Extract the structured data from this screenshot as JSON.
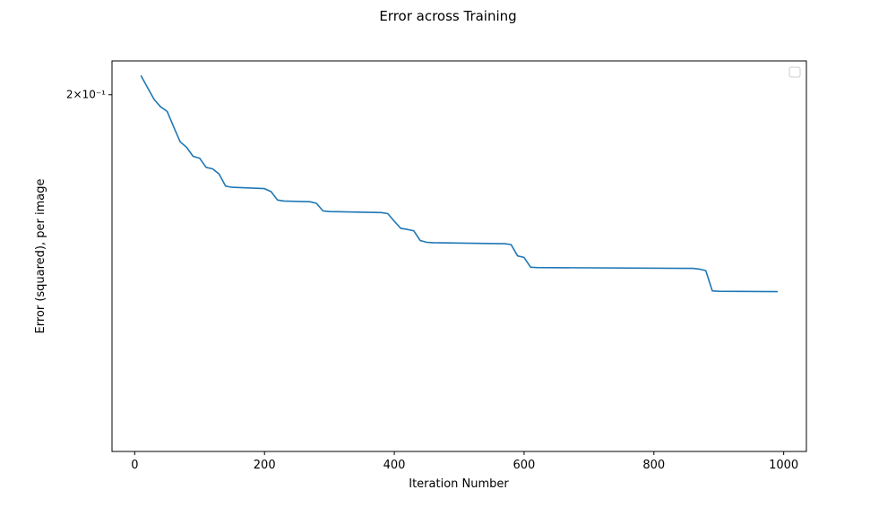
{
  "chart_data": {
    "type": "line",
    "title": "Error across Training",
    "xlabel": "Iteration Number",
    "ylabel": "Error (squared), per image",
    "yscale": "log",
    "xlim": [
      -35,
      1035
    ],
    "ylim": [
      0.1055,
      0.2125
    ],
    "x_ticks": [
      0,
      200,
      400,
      600,
      800,
      1000
    ],
    "x_tick_labels": [
      "0",
      "200",
      "400",
      "600",
      "800",
      "1000"
    ],
    "y_ticks": [
      0.2
    ],
    "y_tick_labels": [
      "2×10⁻¹"
    ],
    "grid": false,
    "legend": {
      "location": "top-right",
      "entries": []
    },
    "series": [
      {
        "color": "#1f77b4",
        "x": [
          10,
          20,
          30,
          40,
          50,
          60,
          70,
          80,
          90,
          100,
          110,
          120,
          130,
          140,
          150,
          200,
          210,
          220,
          230,
          270,
          280,
          290,
          300,
          380,
          390,
          400,
          410,
          420,
          430,
          440,
          450,
          460,
          570,
          580,
          590,
          600,
          610,
          620,
          860,
          870,
          880,
          890,
          900,
          990
        ],
        "y": [
          0.2068,
          0.2025,
          0.1983,
          0.1957,
          0.1941,
          0.1888,
          0.1838,
          0.182,
          0.1791,
          0.1785,
          0.1756,
          0.1751,
          0.1735,
          0.1698,
          0.1694,
          0.169,
          0.1681,
          0.1656,
          0.1653,
          0.1651,
          0.1646,
          0.1624,
          0.1622,
          0.1619,
          0.1616,
          0.1594,
          0.1574,
          0.1571,
          0.1567,
          0.154,
          0.1535,
          0.1534,
          0.1531,
          0.1529,
          0.1498,
          0.1494,
          0.1468,
          0.1467,
          0.1465,
          0.1463,
          0.1459,
          0.1407,
          0.1406,
          0.1405
        ]
      }
    ]
  }
}
